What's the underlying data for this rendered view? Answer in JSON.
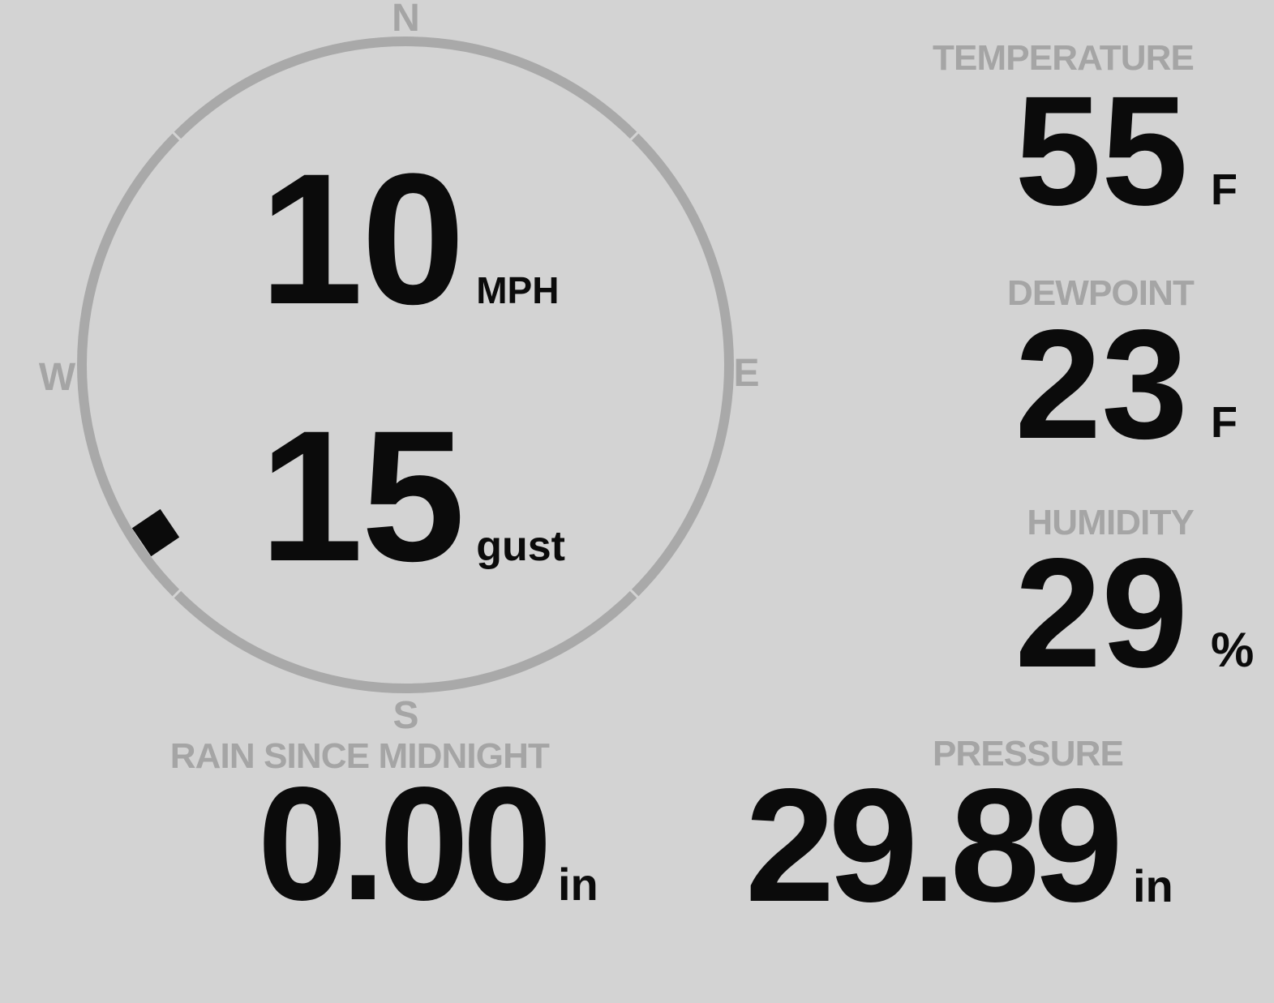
{
  "theme": {
    "background": "#d3d3d3",
    "ring_gray": "#a9a9a9",
    "label_gray": "#a5a5a5",
    "text_black": "#0b0b0b"
  },
  "wind": {
    "compass_labels": {
      "north": "N",
      "east": "E",
      "south": "S",
      "west": "W"
    },
    "speed_value": "10",
    "speed_unit": "MPH",
    "gust_value": "15",
    "gust_unit": "gust",
    "direction_deg": 236
  },
  "metrics": [
    {
      "id": "temperature",
      "label": "TEMPERATURE",
      "value": "55",
      "unit": "F"
    },
    {
      "id": "dewpoint",
      "label": "DEWPOINT",
      "value": "23",
      "unit": "F"
    },
    {
      "id": "humidity",
      "label": "HUMIDITY",
      "value": "29",
      "unit": "%"
    }
  ],
  "rain": {
    "label": "RAIN SINCE MIDNIGHT",
    "value": "0.00",
    "unit": "in"
  },
  "pressure": {
    "label": "PRESSURE",
    "value": "29.89",
    "unit": "in"
  }
}
